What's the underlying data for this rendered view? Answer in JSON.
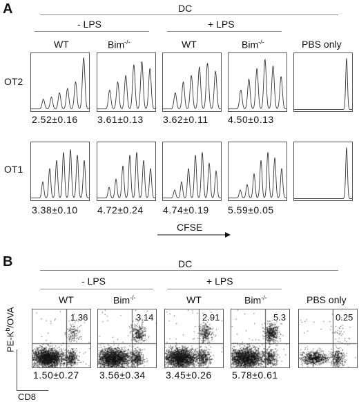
{
  "panelA": {
    "letter": "A",
    "dc_label": "DC",
    "minus_lps": "-  LPS",
    "plus_lps": "+ LPS",
    "columns": [
      "WT",
      "Bim",
      "WT",
      "Bim",
      "PBS only"
    ],
    "bim_sup": "-/-",
    "rows": [
      "OT2",
      "OT1"
    ],
    "ot2_values": [
      "2.52±0.16",
      "3.61±0.13",
      "3.62±0.11",
      "4.50±0.13"
    ],
    "ot1_values": [
      "3.38±0.10",
      "4.72±0.24",
      "4.74±0.19",
      "5.59±0.05"
    ],
    "axis_label": "CFSE"
  },
  "panelB": {
    "letter": "B",
    "dc_label": "DC",
    "minus_lps": "-  LPS",
    "plus_lps": "+ LPS",
    "columns": [
      "WT",
      "Bim",
      "WT",
      "Bim",
      "PBS only"
    ],
    "bim_sup": "-/-",
    "quadrant_values": [
      "1.36",
      "3.14",
      "2.91",
      "5.3",
      "0.25"
    ],
    "bottom_values": [
      "1.50±0.27",
      "3.56±0.34",
      "3.45±0.26",
      "5.78±0.61"
    ],
    "ylabel_pre": "PE-K",
    "ylabel_sup": "b",
    "ylabel_post": "/OVA",
    "xlabel": "CD8"
  },
  "colors": {
    "line": "#333333",
    "dots": "#111111",
    "frame": "#555555"
  }
}
